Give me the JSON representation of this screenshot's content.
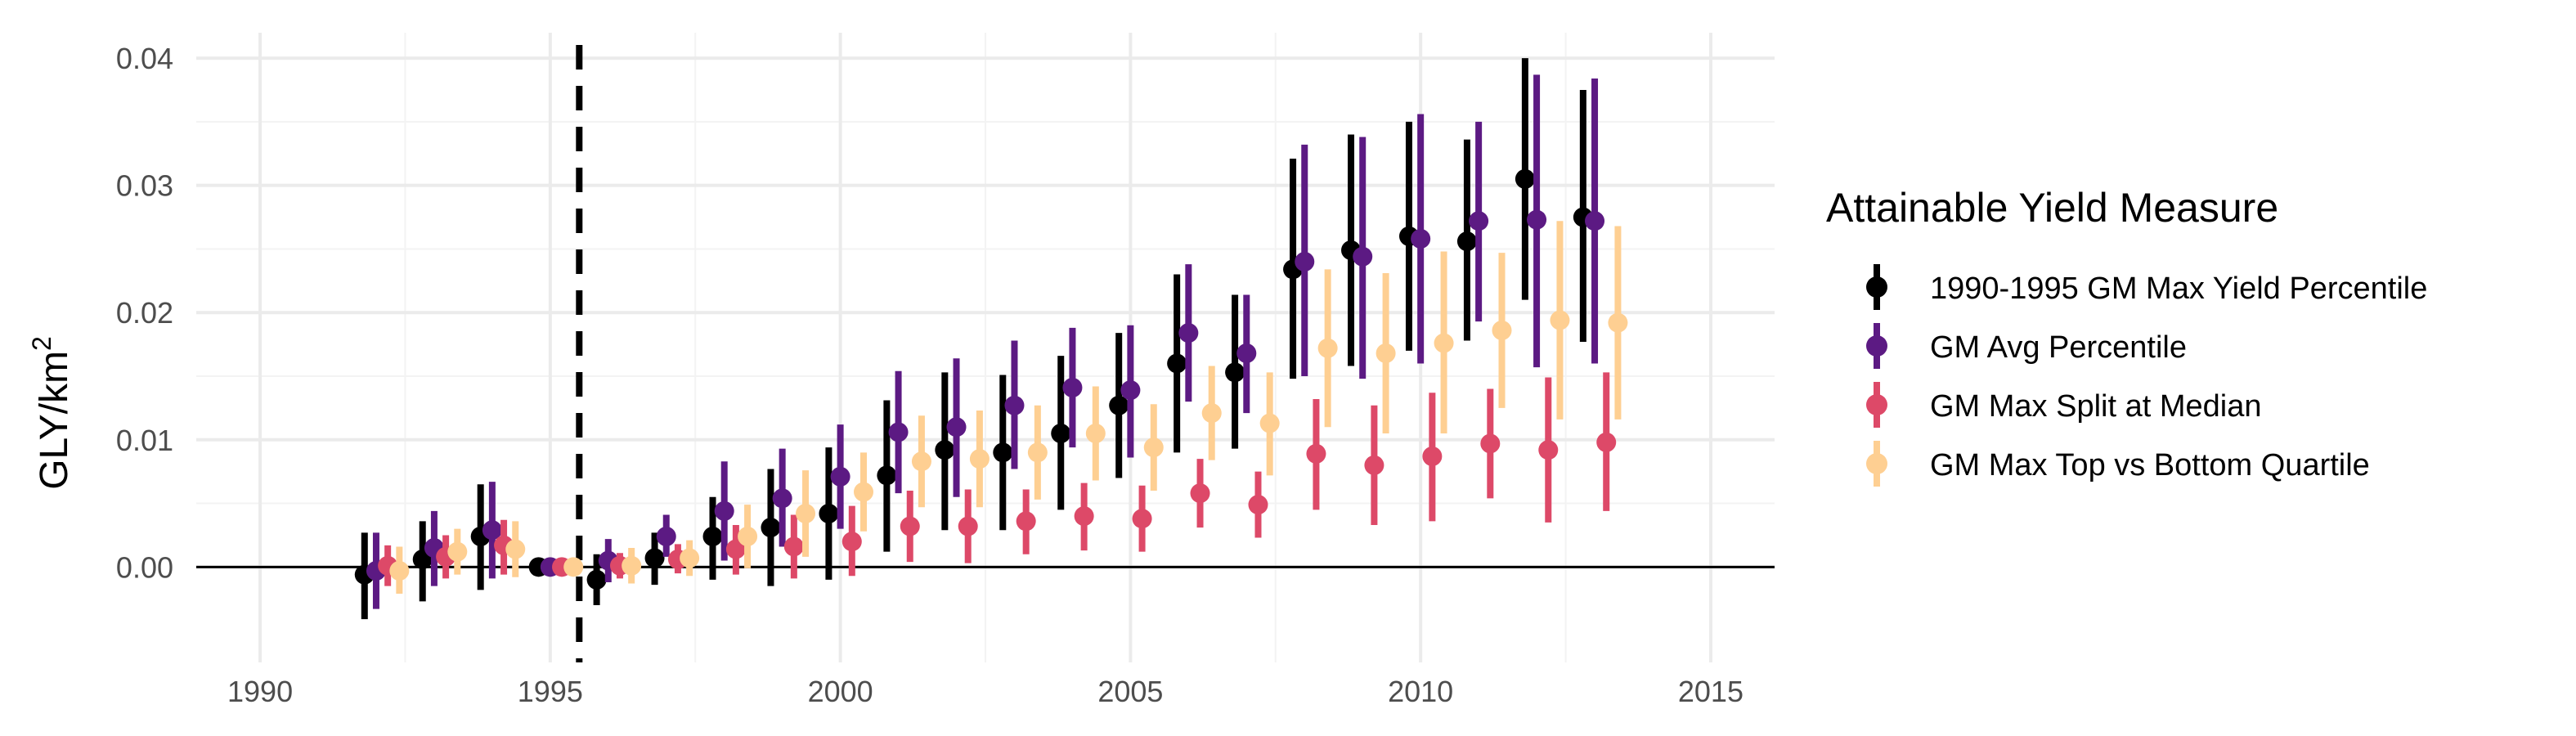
{
  "chart_data": {
    "type": "scatter",
    "title": "",
    "xlabel": "",
    "ylabel": "GLY/km",
    "ylabel_superscript": "2",
    "xlim": [
      1988.9,
      2016.1
    ],
    "ylim": [
      -0.0075,
      0.042
    ],
    "x_ticks": [
      1990,
      1995,
      2000,
      2005,
      2010,
      2015
    ],
    "x_tick_labels": [
      "1990",
      "1995",
      "2000",
      "2005",
      "2010",
      "2015"
    ],
    "y_ticks": [
      0.0,
      0.01,
      0.02,
      0.03,
      0.04
    ],
    "y_tick_labels": [
      "0.00",
      "0.01",
      "0.02",
      "0.03",
      "0.04"
    ],
    "grid": true,
    "reference_hline": 0,
    "reference_vline": 1995.5,
    "legend_title": "Attainable Yield Measure",
    "legend_position": "right",
    "series": [
      {
        "name": "1990-1995 GM Max Yield Percentile",
        "color": "#000000",
        "points": [
          {
            "x": 1991.8,
            "y": -0.0006,
            "lo": -0.0041,
            "hi": 0.0027
          },
          {
            "x": 1992.8,
            "y": 0.0006,
            "lo": -0.0027,
            "hi": 0.0036
          },
          {
            "x": 1993.8,
            "y": 0.0024,
            "lo": -0.0018,
            "hi": 0.0065
          },
          {
            "x": 1994.8,
            "y": 0.0,
            "lo": 0.0,
            "hi": 0.0
          },
          {
            "x": 1995.8,
            "y": -0.001,
            "lo": -0.003,
            "hi": 0.001
          },
          {
            "x": 1996.8,
            "y": 0.0007,
            "lo": -0.0014,
            "hi": 0.0027
          },
          {
            "x": 1997.8,
            "y": 0.0024,
            "lo": -0.001,
            "hi": 0.0055
          },
          {
            "x": 1998.8,
            "y": 0.0031,
            "lo": -0.0015,
            "hi": 0.0077
          },
          {
            "x": 1999.8,
            "y": 0.0042,
            "lo": -0.001,
            "hi": 0.0094
          },
          {
            "x": 2000.8,
            "y": 0.0072,
            "lo": 0.0012,
            "hi": 0.0131
          },
          {
            "x": 2001.8,
            "y": 0.0092,
            "lo": 0.0029,
            "hi": 0.0153
          },
          {
            "x": 2002.8,
            "y": 0.009,
            "lo": 0.0029,
            "hi": 0.0151
          },
          {
            "x": 2003.8,
            "y": 0.0105,
            "lo": 0.0045,
            "hi": 0.0166
          },
          {
            "x": 2004.8,
            "y": 0.0127,
            "lo": 0.007,
            "hi": 0.0184
          },
          {
            "x": 2005.8,
            "y": 0.016,
            "lo": 0.009,
            "hi": 0.023
          },
          {
            "x": 2006.8,
            "y": 0.0153,
            "lo": 0.0093,
            "hi": 0.0214
          },
          {
            "x": 2007.8,
            "y": 0.0234,
            "lo": 0.0148,
            "hi": 0.0321
          },
          {
            "x": 2008.8,
            "y": 0.0249,
            "lo": 0.0158,
            "hi": 0.034
          },
          {
            "x": 2009.8,
            "y": 0.026,
            "lo": 0.017,
            "hi": 0.035
          },
          {
            "x": 2010.8,
            "y": 0.0256,
            "lo": 0.0178,
            "hi": 0.0336
          },
          {
            "x": 2011.8,
            "y": 0.0305,
            "lo": 0.021,
            "hi": 0.04
          },
          {
            "x": 2012.8,
            "y": 0.0275,
            "lo": 0.0177,
            "hi": 0.0375
          }
        ]
      },
      {
        "name": "GM Avg Percentile",
        "color": "#5c1a83",
        "points": [
          {
            "x": 1992.0,
            "y": -0.0003,
            "lo": -0.0033,
            "hi": 0.0027
          },
          {
            "x": 1993.0,
            "y": 0.0015,
            "lo": -0.0015,
            "hi": 0.0044
          },
          {
            "x": 1994.0,
            "y": 0.0029,
            "lo": -0.0009,
            "hi": 0.0067
          },
          {
            "x": 1995.0,
            "y": 0.0,
            "lo": 0.0,
            "hi": 0.0
          },
          {
            "x": 1996.0,
            "y": 0.0005,
            "lo": -0.0012,
            "hi": 0.0022
          },
          {
            "x": 1997.0,
            "y": 0.0024,
            "lo": 0.0008,
            "hi": 0.0041
          },
          {
            "x": 1998.0,
            "y": 0.0044,
            "lo": 0.0005,
            "hi": 0.0083
          },
          {
            "x": 1999.0,
            "y": 0.0054,
            "lo": 0.0016,
            "hi": 0.0093
          },
          {
            "x": 2000.0,
            "y": 0.0071,
            "lo": 0.003,
            "hi": 0.0112
          },
          {
            "x": 2001.0,
            "y": 0.0106,
            "lo": 0.0058,
            "hi": 0.0154
          },
          {
            "x": 2002.0,
            "y": 0.011,
            "lo": 0.0055,
            "hi": 0.0164
          },
          {
            "x": 2003.0,
            "y": 0.0127,
            "lo": 0.0077,
            "hi": 0.0178
          },
          {
            "x": 2004.0,
            "y": 0.0141,
            "lo": 0.0094,
            "hi": 0.0188
          },
          {
            "x": 2005.0,
            "y": 0.0139,
            "lo": 0.0086,
            "hi": 0.019
          },
          {
            "x": 2006.0,
            "y": 0.0184,
            "lo": 0.013,
            "hi": 0.0238
          },
          {
            "x": 2007.0,
            "y": 0.0168,
            "lo": 0.0121,
            "hi": 0.0214
          },
          {
            "x": 2008.0,
            "y": 0.024,
            "lo": 0.015,
            "hi": 0.0332
          },
          {
            "x": 2009.0,
            "y": 0.0244,
            "lo": 0.0148,
            "hi": 0.0338
          },
          {
            "x": 2010.0,
            "y": 0.0258,
            "lo": 0.016,
            "hi": 0.0356
          },
          {
            "x": 2011.0,
            "y": 0.0272,
            "lo": 0.0193,
            "hi": 0.035
          },
          {
            "x": 2012.0,
            "y": 0.0273,
            "lo": 0.0157,
            "hi": 0.0387
          },
          {
            "x": 2013.0,
            "y": 0.0272,
            "lo": 0.016,
            "hi": 0.0384
          }
        ]
      },
      {
        "name": "GM Max Split at Median",
        "color": "#dd4968",
        "points": [
          {
            "x": 1992.2,
            "y": 0.0001,
            "lo": -0.0015,
            "hi": 0.0017
          },
          {
            "x": 1993.2,
            "y": 0.0008,
            "lo": -0.0009,
            "hi": 0.0025
          },
          {
            "x": 1994.2,
            "y": 0.0017,
            "lo": -0.0006,
            "hi": 0.0037
          },
          {
            "x": 1995.2,
            "y": 0.0,
            "lo": 0.0,
            "hi": 0.0
          },
          {
            "x": 1996.2,
            "y": 0.0001,
            "lo": -0.0009,
            "hi": 0.0011
          },
          {
            "x": 1997.2,
            "y": 0.0006,
            "lo": -0.0005,
            "hi": 0.0018
          },
          {
            "x": 1998.2,
            "y": 0.0014,
            "lo": -0.0006,
            "hi": 0.0033
          },
          {
            "x": 1999.2,
            "y": 0.0016,
            "lo": -0.0009,
            "hi": 0.0041
          },
          {
            "x": 2000.2,
            "y": 0.002,
            "lo": -0.0007,
            "hi": 0.0048
          },
          {
            "x": 2001.2,
            "y": 0.0032,
            "lo": 0.0004,
            "hi": 0.006
          },
          {
            "x": 2002.2,
            "y": 0.0032,
            "lo": 0.0003,
            "hi": 0.0061
          },
          {
            "x": 2003.2,
            "y": 0.0036,
            "lo": 0.001,
            "hi": 0.0061
          },
          {
            "x": 2004.2,
            "y": 0.004,
            "lo": 0.0013,
            "hi": 0.0066
          },
          {
            "x": 2005.2,
            "y": 0.0038,
            "lo": 0.0012,
            "hi": 0.0064
          },
          {
            "x": 2006.2,
            "y": 0.0058,
            "lo": 0.0031,
            "hi": 0.0085
          },
          {
            "x": 2007.2,
            "y": 0.0049,
            "lo": 0.0023,
            "hi": 0.0075
          },
          {
            "x": 2008.2,
            "y": 0.0089,
            "lo": 0.0045,
            "hi": 0.0132
          },
          {
            "x": 2009.2,
            "y": 0.008,
            "lo": 0.0033,
            "hi": 0.0127
          },
          {
            "x": 2010.2,
            "y": 0.0087,
            "lo": 0.0036,
            "hi": 0.0137
          },
          {
            "x": 2011.2,
            "y": 0.0097,
            "lo": 0.0054,
            "hi": 0.014
          },
          {
            "x": 2012.2,
            "y": 0.0092,
            "lo": 0.0035,
            "hi": 0.0149
          },
          {
            "x": 2013.2,
            "y": 0.0098,
            "lo": 0.0044,
            "hi": 0.0153
          }
        ]
      },
      {
        "name": "GM Max Top vs Bottom Quartile",
        "color": "#fecf92",
        "points": [
          {
            "x": 1992.4,
            "y": -0.0003,
            "lo": -0.0021,
            "hi": 0.0016
          },
          {
            "x": 1993.4,
            "y": 0.0012,
            "lo": -0.0006,
            "hi": 0.003
          },
          {
            "x": 1994.4,
            "y": 0.0014,
            "lo": -0.0008,
            "hi": 0.0036
          },
          {
            "x": 1995.4,
            "y": 0.0,
            "lo": 0.0,
            "hi": 0.0
          },
          {
            "x": 1996.4,
            "y": 0.0001,
            "lo": -0.0013,
            "hi": 0.0015
          },
          {
            "x": 1997.4,
            "y": 0.0007,
            "lo": -0.0007,
            "hi": 0.0021
          },
          {
            "x": 1998.4,
            "y": 0.0024,
            "lo": -0.0001,
            "hi": 0.0049
          },
          {
            "x": 1999.4,
            "y": 0.0042,
            "lo": 0.0008,
            "hi": 0.0076
          },
          {
            "x": 2000.4,
            "y": 0.0059,
            "lo": 0.0028,
            "hi": 0.009
          },
          {
            "x": 2001.4,
            "y": 0.0083,
            "lo": 0.0047,
            "hi": 0.0119
          },
          {
            "x": 2002.4,
            "y": 0.0085,
            "lo": 0.0047,
            "hi": 0.0123
          },
          {
            "x": 2003.4,
            "y": 0.009,
            "lo": 0.0053,
            "hi": 0.0127
          },
          {
            "x": 2004.4,
            "y": 0.0105,
            "lo": 0.0068,
            "hi": 0.0142
          },
          {
            "x": 2005.4,
            "y": 0.0094,
            "lo": 0.006,
            "hi": 0.0128
          },
          {
            "x": 2006.4,
            "y": 0.0121,
            "lo": 0.0084,
            "hi": 0.0158
          },
          {
            "x": 2007.4,
            "y": 0.0113,
            "lo": 0.0072,
            "hi": 0.0153
          },
          {
            "x": 2008.4,
            "y": 0.0172,
            "lo": 0.011,
            "hi": 0.0234
          },
          {
            "x": 2009.4,
            "y": 0.0168,
            "lo": 0.0105,
            "hi": 0.0231
          },
          {
            "x": 2010.4,
            "y": 0.0176,
            "lo": 0.0105,
            "hi": 0.0248
          },
          {
            "x": 2011.4,
            "y": 0.0186,
            "lo": 0.0125,
            "hi": 0.0247
          },
          {
            "x": 2012.4,
            "y": 0.0194,
            "lo": 0.0116,
            "hi": 0.0272
          },
          {
            "x": 2013.4,
            "y": 0.0192,
            "lo": 0.0116,
            "hi": 0.0268
          }
        ]
      }
    ]
  }
}
